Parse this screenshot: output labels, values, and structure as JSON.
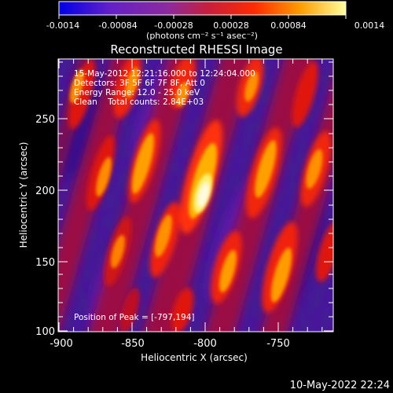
{
  "colorbar": {
    "ticks": [
      "-0.0014",
      "-0.00084",
      "-0.00028",
      "0.00028",
      "0.00084",
      "0.0014"
    ],
    "units": "(photons cm⁻² s⁻¹ asec⁻²)"
  },
  "title": "Reconstructed RHESSI Image",
  "annotations": {
    "time": "15-May-2012 12:21:16.000 to 12:24:04.000",
    "detectors": "Detectors: 3F 5F 6F 7F 8F, Att 0",
    "energy": "Energy Range: 12.0 - 25.0 keV",
    "clean": "Clean    Total counts: 2.84E+03",
    "peak": "Position of Peak = [-797,194]"
  },
  "axes": {
    "xlabel": "Heliocentric X (arcsec)",
    "ylabel": "Heliocentric Y (arcsec)",
    "xticks": [
      "-900",
      "-850",
      "-800",
      "-750"
    ],
    "yticks": [
      "100",
      "150",
      "200",
      "250"
    ],
    "xrange": [
      -900,
      -712
    ],
    "yrange": [
      100,
      290
    ]
  },
  "footer": {
    "date": "10-May-2022 22:24"
  },
  "colors": {
    "background": "#000000",
    "axis": "#ffffff",
    "peak": "#fffbe0"
  }
}
